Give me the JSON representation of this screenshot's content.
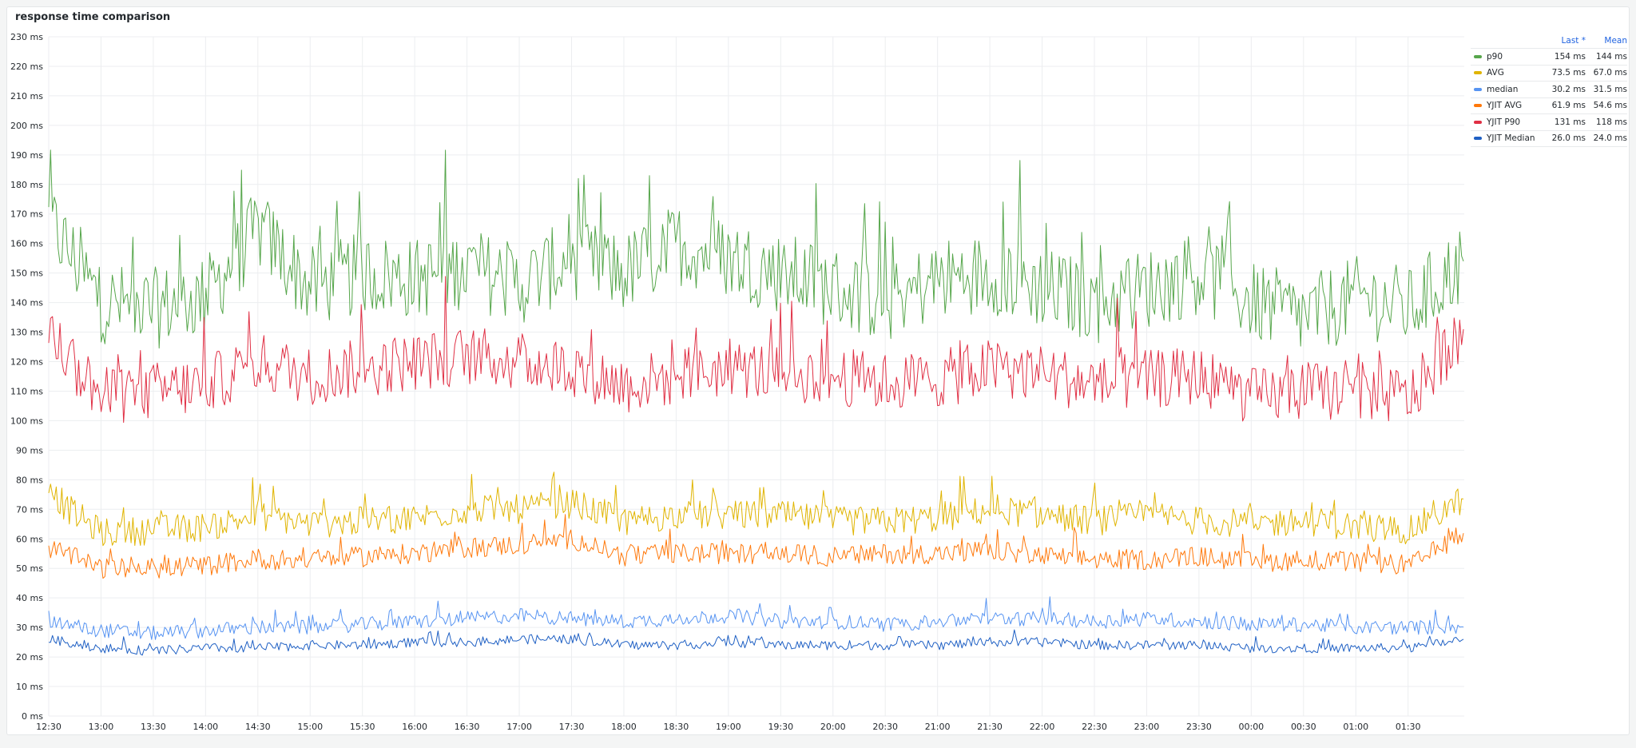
{
  "panel": {
    "title": "response time comparison"
  },
  "legend": {
    "headers": {
      "last": "Last *",
      "mean": "Mean"
    },
    "items": [
      {
        "name": "p90",
        "color": "#56a64b",
        "last": "154 ms",
        "mean": "144 ms"
      },
      {
        "name": "AVG",
        "color": "#e0b400",
        "last": "73.5 ms",
        "mean": "67.0 ms"
      },
      {
        "name": "median",
        "color": "#5794f2",
        "last": "30.2 ms",
        "mean": "31.5 ms"
      },
      {
        "name": "YJIT AVG",
        "color": "#ff780a",
        "last": "61.9 ms",
        "mean": "54.6 ms"
      },
      {
        "name": "YJIT P90",
        "color": "#e02f44",
        "last": "131 ms",
        "mean": "118 ms"
      },
      {
        "name": "YJIT Median",
        "color": "#1f60c4",
        "last": "26.0 ms",
        "mean": "24.0 ms"
      }
    ]
  },
  "chart_data": {
    "type": "line",
    "title": "response time comparison",
    "ylim": [
      0,
      230
    ],
    "y_unit": "ms",
    "y_ticks": [
      "0 ms",
      "10 ms",
      "20 ms",
      "30 ms",
      "40 ms",
      "50 ms",
      "60 ms",
      "70 ms",
      "80 ms",
      "90 ms",
      "100 ms",
      "110 ms",
      "120 ms",
      "130 ms",
      "140 ms",
      "150 ms",
      "160 ms",
      "170 ms",
      "180 ms",
      "190 ms",
      "200 ms",
      "210 ms",
      "220 ms",
      "230 ms"
    ],
    "x_ticks": [
      "12:30",
      "13:00",
      "13:30",
      "14:00",
      "14:30",
      "15:00",
      "15:30",
      "16:00",
      "16:30",
      "17:00",
      "17:30",
      "18:00",
      "18:30",
      "19:00",
      "19:30",
      "20:00",
      "20:30",
      "21:00",
      "21:30",
      "22:00",
      "22:30",
      "23:00",
      "23:30",
      "00:00",
      "00:30",
      "01:00",
      "01:30"
    ],
    "grid": true,
    "legend_position": "right",
    "x": [
      "12:30",
      "13:00",
      "13:30",
      "14:00",
      "14:30",
      "15:00",
      "15:30",
      "16:00",
      "16:30",
      "17:00",
      "17:30",
      "18:00",
      "18:30",
      "19:00",
      "19:30",
      "20:00",
      "20:30",
      "21:00",
      "21:30",
      "22:00",
      "22:30",
      "23:00",
      "23:30",
      "00:00",
      "00:30",
      "01:00",
      "01:30",
      "01:55"
    ],
    "series": [
      {
        "name": "p90",
        "color": "#56a64b",
        "values": [
          168,
          140,
          138,
          142,
          165,
          145,
          150,
          148,
          152,
          146,
          155,
          150,
          160,
          155,
          150,
          145,
          140,
          148,
          150,
          145,
          140,
          145,
          150,
          140,
          135,
          142,
          138,
          154
        ]
      },
      {
        "name": "AVG",
        "color": "#e0b400",
        "values": [
          75,
          62,
          63,
          64,
          68,
          65,
          66,
          67,
          70,
          70,
          72,
          66,
          68,
          68,
          68,
          66,
          66,
          67,
          70,
          68,
          66,
          68,
          66,
          65,
          66,
          64,
          63,
          73.5
        ]
      },
      {
        "name": "median",
        "color": "#5794f2",
        "values": [
          32,
          29,
          28,
          29,
          30,
          30,
          31,
          32,
          33,
          34,
          33,
          32,
          33,
          34,
          32,
          32,
          31,
          32,
          33,
          33,
          32,
          33,
          32,
          31,
          31,
          30,
          30,
          30.2
        ]
      },
      {
        "name": "YJIT AVG",
        "color": "#ff780a",
        "values": [
          57,
          50,
          50,
          51,
          53,
          53,
          54,
          55,
          57,
          58,
          60,
          54,
          55,
          55,
          55,
          54,
          55,
          55,
          56,
          54,
          53,
          53,
          54,
          52,
          53,
          52,
          51,
          61.9
        ]
      },
      {
        "name": "YJIT P90",
        "color": "#e02f44",
        "values": [
          130,
          108,
          110,
          112,
          120,
          115,
          118,
          120,
          122,
          120,
          118,
          112,
          115,
          118,
          116,
          115,
          113,
          114,
          118,
          116,
          112,
          114,
          115,
          108,
          110,
          110,
          108,
          131
        ]
      },
      {
        "name": "YJIT Median",
        "color": "#1f60c4",
        "values": [
          26,
          23,
          22,
          23,
          23,
          24,
          24,
          25,
          25,
          26,
          26,
          24,
          24,
          25,
          24,
          24,
          24,
          24,
          25,
          25,
          24,
          24,
          24,
          23,
          23,
          23,
          23,
          26
        ]
      }
    ]
  }
}
